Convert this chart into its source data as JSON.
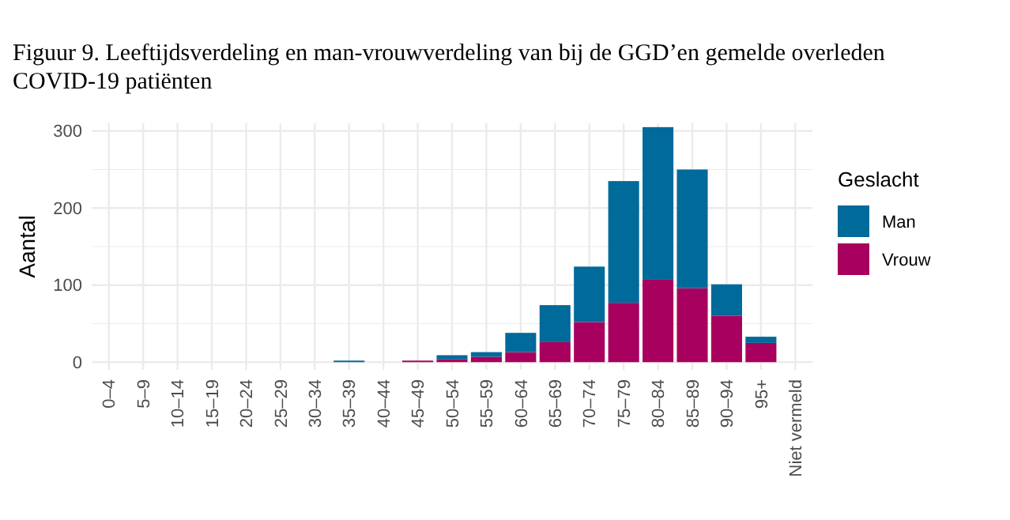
{
  "chart_data": {
    "type": "bar",
    "title": "Figuur 9. Leeftijdsverdeling en man-vrouwverdeling van bij de GGD’en gemelde overleden COVID-19 patiënten",
    "ylabel": "Aantal",
    "legend_title": "Geslacht",
    "categories": [
      "0–4",
      "5–9",
      "10–14",
      "15–19",
      "20–24",
      "25–29",
      "30–34",
      "35–39",
      "40–44",
      "45–49",
      "50–54",
      "55–59",
      "60–64",
      "65–69",
      "70–74",
      "75–79",
      "80–84",
      "85–89",
      "90–94",
      "95+",
      "Niet vermeld"
    ],
    "stacked": true,
    "series": [
      {
        "name": "Vrouw",
        "color": "#a8005e",
        "values": [
          0,
          0,
          0,
          0,
          0,
          0,
          0,
          0,
          0,
          2,
          4,
          7,
          13,
          26,
          52,
          77,
          107,
          96,
          60,
          25,
          0
        ]
      },
      {
        "name": "Man",
        "color": "#006a9a",
        "values": [
          0,
          0,
          0,
          0,
          0,
          0,
          0,
          2,
          0,
          0,
          5,
          6,
          25,
          48,
          72,
          158,
          198,
          154,
          41,
          8,
          0
        ]
      }
    ],
    "ylim": [
      -10,
      310
    ],
    "yticks": [
      0,
      100,
      200,
      300
    ],
    "grid": true,
    "legend": "right"
  }
}
